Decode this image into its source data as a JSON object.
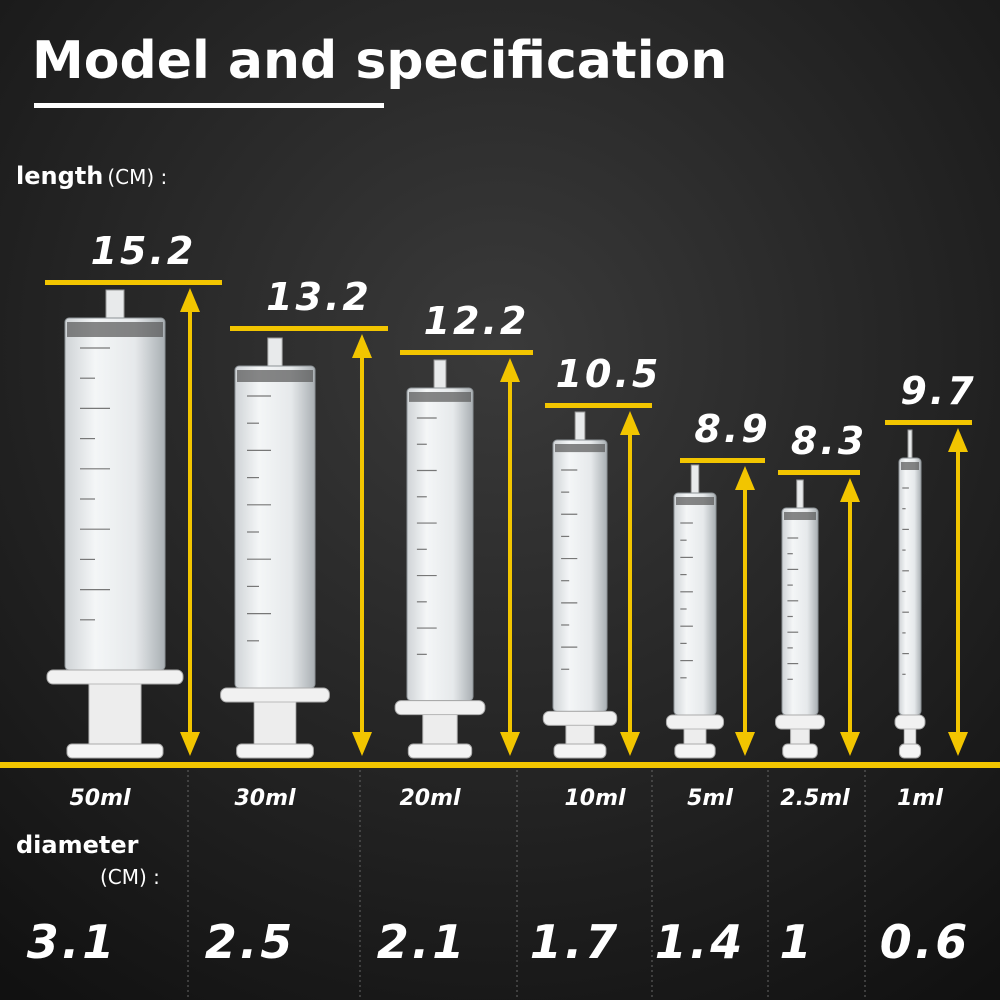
{
  "title": "Model and specification",
  "length_label": "length",
  "length_unit": "(CM) :",
  "diameter_label": "diameter",
  "diameter_unit": "(CM) :",
  "syringes": [
    {
      "capacity": "50ml",
      "length": "15.2",
      "diameter": "3.1"
    },
    {
      "capacity": "30ml",
      "length": "13.2",
      "diameter": "2.5"
    },
    {
      "capacity": "20ml",
      "length": "12.2",
      "diameter": "2.1"
    },
    {
      "capacity": "10ml",
      "length": "10.5",
      "diameter": "1.7"
    },
    {
      "capacity": "5ml",
      "length": "8.9",
      "diameter": "1.4"
    },
    {
      "capacity": "2.5ml",
      "length": "8.3",
      "diameter": "1"
    },
    {
      "capacity": "1ml",
      "length": "9.7",
      "diameter": "0.6"
    }
  ]
}
